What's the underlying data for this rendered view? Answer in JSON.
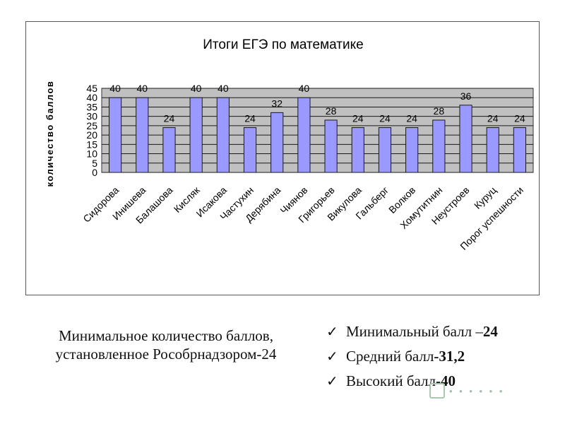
{
  "chart_data": {
    "type": "bar",
    "title": "Итоги ЕГЭ по математике",
    "ylabel": "количество баллов",
    "xlabel": "",
    "ylim": [
      0,
      45
    ],
    "yticks": [
      "0",
      "5",
      "10",
      "15",
      "20",
      "25",
      "30",
      "35",
      "40",
      "45"
    ],
    "grid": true,
    "legend": false,
    "categories": [
      "Сидорова",
      "Инишева",
      "Балашова",
      "Кисляк",
      "Исакова",
      "Частухин",
      "Дерябина",
      "Чиянов",
      "Григорьев",
      "Викулова",
      "Гальберг",
      "Волков",
      "Хомутитнин",
      "Неустроев",
      "Куруц",
      "Порог успешности"
    ],
    "values": [
      40,
      40,
      24,
      40,
      40,
      24,
      32,
      40,
      28,
      24,
      24,
      24,
      28,
      36,
      24,
      24
    ],
    "data_labels": [
      "40",
      "40",
      "24",
      "40",
      "40",
      "24",
      "32",
      "40",
      "28",
      "24",
      "24",
      "24",
      "28",
      "36",
      "24",
      "24"
    ],
    "colors": {
      "bar_fill": "#9999ff",
      "bar_stroke": "#1a1a1a",
      "plot_area": "#c0c0c0",
      "gridline": "#1a1a1a"
    }
  },
  "caption": "Минимальное количество баллов, установленное Рособрнадзором-24",
  "stats": [
    {
      "label": "Минимальный балл – ",
      "value": "24"
    },
    {
      "label": "Средний балл ",
      "value": "-31,2"
    },
    {
      "label": "Высокий балл ",
      "value": "-40"
    }
  ],
  "check_icon": "✓"
}
